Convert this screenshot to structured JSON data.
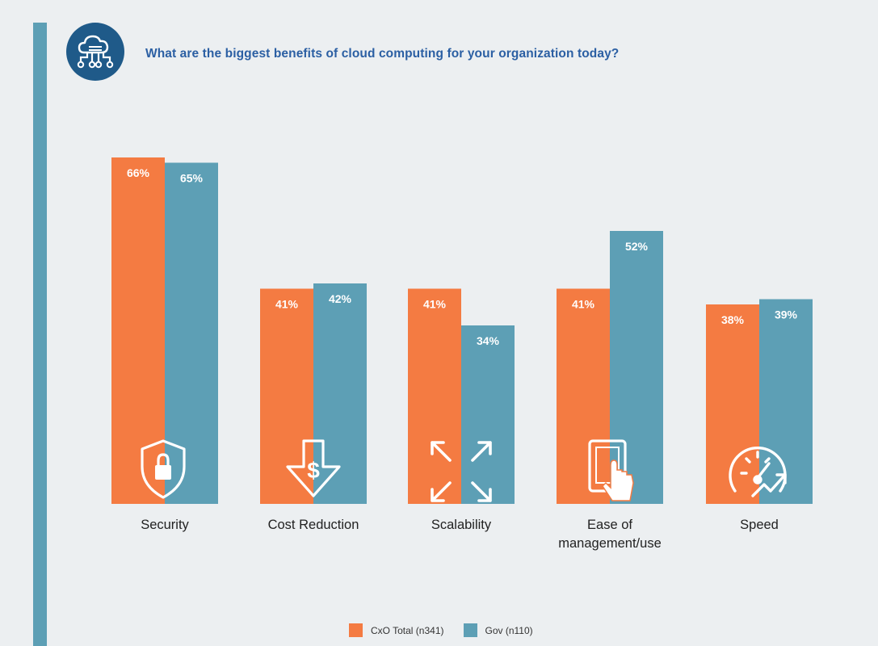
{
  "header": {
    "title": "What are the biggest benefits of cloud computing for your organization today?"
  },
  "colors": {
    "accent_bar": "#5d9fb5",
    "icon_circle": "#1f5a89",
    "cxo": "#f47b42",
    "gov": "#5d9fb5",
    "label_text": "#222222"
  },
  "icons": [
    "security-shield-lock-icon",
    "cost-reduction-arrow-dollar-icon",
    "scalability-expand-arrows-icon",
    "ease-tablet-touch-icon",
    "speed-gauge-icon"
  ],
  "chart_data": {
    "type": "bar",
    "title": "What are the biggest benefits of cloud computing for your organization today?",
    "categories": [
      "Security",
      "Cost Reduction",
      "Scalability",
      "Ease of management/use",
      "Speed"
    ],
    "series": [
      {
        "name": "CxO Total (n341)",
        "values": [
          66,
          41,
          41,
          41,
          38
        ],
        "labels": [
          "66%",
          "41%",
          "41%",
          "41%",
          "38%"
        ]
      },
      {
        "name": "Gov (n110)",
        "values": [
          65,
          42,
          34,
          52,
          39
        ],
        "labels": [
          "65%",
          "42%",
          "34%",
          "52%",
          "39%"
        ]
      }
    ],
    "ylim": [
      0,
      100
    ],
    "grid": false,
    "legend": "bottom-center"
  }
}
